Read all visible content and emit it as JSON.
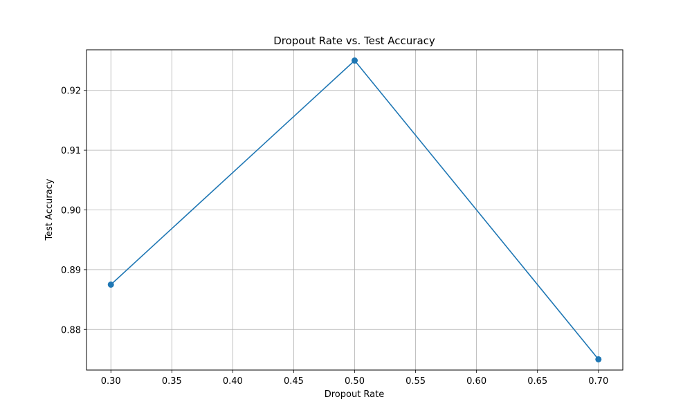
{
  "chart_data": {
    "type": "line",
    "title": "Dropout Rate vs. Test Accuracy",
    "xlabel": "Dropout Rate",
    "ylabel": "Test Accuracy",
    "x": [
      0.3,
      0.5,
      0.7
    ],
    "series": [
      {
        "values": [
          0.8875,
          0.925,
          0.875
        ],
        "color": "#1f77b4",
        "marker": "circle"
      }
    ],
    "xlim": [
      0.28,
      0.72
    ],
    "ylim": [
      0.8732,
      0.9268
    ],
    "xticks": [
      "0.30",
      "0.35",
      "0.40",
      "0.45",
      "0.50",
      "0.55",
      "0.60",
      "0.65",
      "0.70"
    ],
    "yticks": [
      "0.88",
      "0.89",
      "0.90",
      "0.91",
      "0.92"
    ],
    "grid": true,
    "legend": "none",
    "colors": {
      "grid": "#b0b0b0",
      "axes": "#000000",
      "background": "#ffffff"
    }
  }
}
